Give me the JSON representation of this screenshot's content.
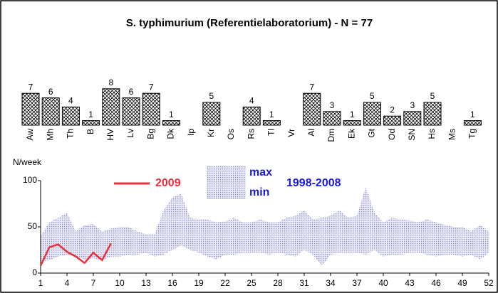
{
  "title": "S. typhimurium (Referentielaboratorium) - N = 77",
  "chart_data": [
    {
      "type": "bar",
      "categories": [
        "Aw",
        "Mh",
        "Th",
        "B",
        "HV",
        "Lv",
        "Bg",
        "Dk",
        "Ip",
        "Kr",
        "Os",
        "Rs",
        "Tl",
        "Vr",
        "Al",
        "Dm",
        "Ek",
        "Gt",
        "Od",
        "SN",
        "Hs",
        "Ms",
        "Tg"
      ],
      "values": [
        7,
        6,
        4,
        1,
        8,
        6,
        7,
        1,
        null,
        5,
        null,
        4,
        1,
        null,
        7,
        3,
        1,
        5,
        2,
        3,
        5,
        null,
        1
      ]
    },
    {
      "type": "line",
      "ylabel": "N/week",
      "x": [
        1,
        2,
        3,
        4,
        5,
        6,
        7,
        8,
        9,
        10,
        11,
        12,
        13,
        14,
        15,
        16,
        17,
        18,
        19,
        20,
        21,
        22,
        23,
        24,
        25,
        26,
        27,
        28,
        29,
        30,
        31,
        32,
        33,
        34,
        35,
        36,
        37,
        38,
        39,
        40,
        41,
        42,
        43,
        44,
        45,
        46,
        47,
        48,
        49,
        50,
        51,
        52
      ],
      "xlim": [
        1,
        52
      ],
      "xticks": [
        1,
        4,
        7,
        10,
        13,
        16,
        19,
        22,
        25,
        28,
        31,
        34,
        37,
        40,
        43,
        46,
        49,
        52
      ],
      "ylim": [
        0,
        100
      ],
      "yticks": [
        0,
        50,
        100
      ],
      "series": [
        {
          "name": "2009",
          "color": "#e8303c",
          "values": [
            8,
            28,
            31,
            23,
            18,
            11,
            22,
            14,
            32,
            null,
            null,
            null,
            null,
            null,
            null,
            null,
            null,
            null,
            null,
            null,
            null,
            null,
            null,
            null,
            null,
            null,
            null,
            null,
            null,
            null,
            null,
            null,
            null,
            null,
            null,
            null,
            null,
            null,
            null,
            null,
            null,
            null,
            null,
            null,
            null,
            null,
            null,
            null,
            null,
            null,
            null,
            null
          ]
        }
      ],
      "band": {
        "name": "1998-2008",
        "max_label": "max",
        "min_label": "min",
        "color": "#1a1adc",
        "max": [
          40,
          55,
          60,
          65,
          45,
          52,
          53,
          45,
          48,
          50,
          50,
          45,
          42,
          42,
          68,
          82,
          86,
          60,
          58,
          58,
          55,
          56,
          60,
          55,
          55,
          58,
          55,
          55,
          60,
          62,
          68,
          58,
          60,
          62,
          68,
          60,
          62,
          93,
          65,
          55,
          60,
          58,
          57,
          55,
          58,
          55,
          52,
          50,
          50,
          45,
          52,
          45
        ],
        "min": [
          12,
          14,
          18,
          20,
          18,
          15,
          16,
          14,
          18,
          18,
          20,
          20,
          22,
          18,
          20,
          25,
          30,
          25,
          22,
          18,
          15,
          20,
          20,
          22,
          22,
          22,
          20,
          22,
          20,
          18,
          25,
          20,
          8,
          20,
          22,
          22,
          22,
          20,
          25,
          18,
          20,
          20,
          22,
          22,
          20,
          18,
          20,
          20,
          18,
          20,
          15,
          22
        ]
      }
    }
  ]
}
